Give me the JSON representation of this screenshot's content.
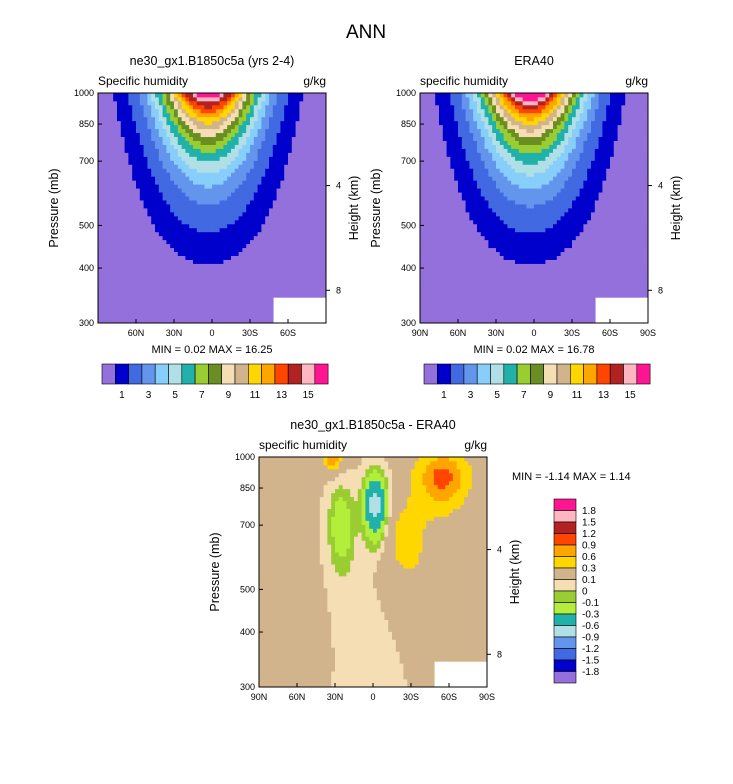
{
  "figure": {
    "main_title": "ANN"
  },
  "chart_data": [
    {
      "type": "heatmap",
      "title": "ne30_gx1.B1850c5a (yrs 2-4)",
      "left_label": "Specific humidity",
      "units": "g/kg",
      "ylabel": "Pressure (mb)",
      "ylabel_right": "Height (km)",
      "yticks": [
        "300",
        "400",
        "500",
        "700",
        "850",
        "1000"
      ],
      "ylim": [
        1000,
        300
      ],
      "yscale": "log",
      "right_ticks": [
        "8",
        "4"
      ],
      "xticks": [
        "60N",
        "30N",
        "0",
        "30S",
        "60S"
      ],
      "xlim": [
        90,
        -90
      ],
      "stats": "MIN =   0.02  MAX =  16.25",
      "max": 16.25
    },
    {
      "type": "heatmap",
      "title": "ERA40",
      "left_label": "specific humidity",
      "units": "g/kg",
      "ylabel": "Pressure (mb)",
      "ylabel_right": "Height (km)",
      "yticks": [
        "300",
        "400",
        "500",
        "700",
        "850",
        "1000"
      ],
      "ylim": [
        1000,
        300
      ],
      "yscale": "log",
      "right_ticks": [
        "8",
        "4"
      ],
      "xticks": [
        "90N",
        "60N",
        "30N",
        "0",
        "30S",
        "60S",
        "90S"
      ],
      "xlim": [
        90,
        -90
      ],
      "stats": "MIN =   0.02  MAX =  16.78",
      "max": 16.78
    },
    {
      "type": "heatmap",
      "title": "ne30_gx1.B1850c5a - ERA40",
      "left_label": "specific humidity",
      "units": "g/kg",
      "ylabel": "Pressure (mb)",
      "ylabel_right": "Height (km)",
      "yticks": [
        "300",
        "400",
        "500",
        "700",
        "850",
        "1000"
      ],
      "ylim": [
        1000,
        300
      ],
      "yscale": "log",
      "right_ticks": [
        "8",
        "4"
      ],
      "xticks": [
        "90N",
        "60N",
        "30N",
        "0",
        "30S",
        "60S",
        "90S"
      ],
      "xlim": [
        90,
        -90
      ],
      "stats": "MIN =  -1.14  MAX =   1.14",
      "min": -1.14,
      "max": 1.14
    }
  ],
  "colorbar_levels": {
    "colors": [
      "#9370db",
      "#0000cd",
      "#4169e1",
      "#6495ed",
      "#87cefa",
      "#b0e0e6",
      "#20b2aa",
      "#9acd32",
      "#6b8e23",
      "#f5deb3",
      "#d2b48c",
      "#ffd700",
      "#ffa500",
      "#ff4500",
      "#b22222",
      "#ffb6c1",
      "#ff1493"
    ],
    "labels": [
      "1",
      "3",
      "5",
      "7",
      "9",
      "11",
      "13",
      "15"
    ]
  },
  "diff_colorbar": {
    "colors": [
      "#9370db",
      "#0000cd",
      "#4169e1",
      "#6495ed",
      "#b0e0e6",
      "#20b2aa",
      "#b3ee3a",
      "#9acd32",
      "#f5deb3",
      "#d2b48c",
      "#ffd700",
      "#ffa500",
      "#ff4500",
      "#b22222",
      "#ffb6c1",
      "#ff1493"
    ],
    "labels": [
      "1.8",
      "1.5",
      "1.2",
      "0.9",
      "0.6",
      "0.3",
      "0.1",
      "0",
      "-0.1",
      "-0.3",
      "-0.6",
      "-0.9",
      "-1.2",
      "-1.5",
      "-1.8"
    ]
  }
}
